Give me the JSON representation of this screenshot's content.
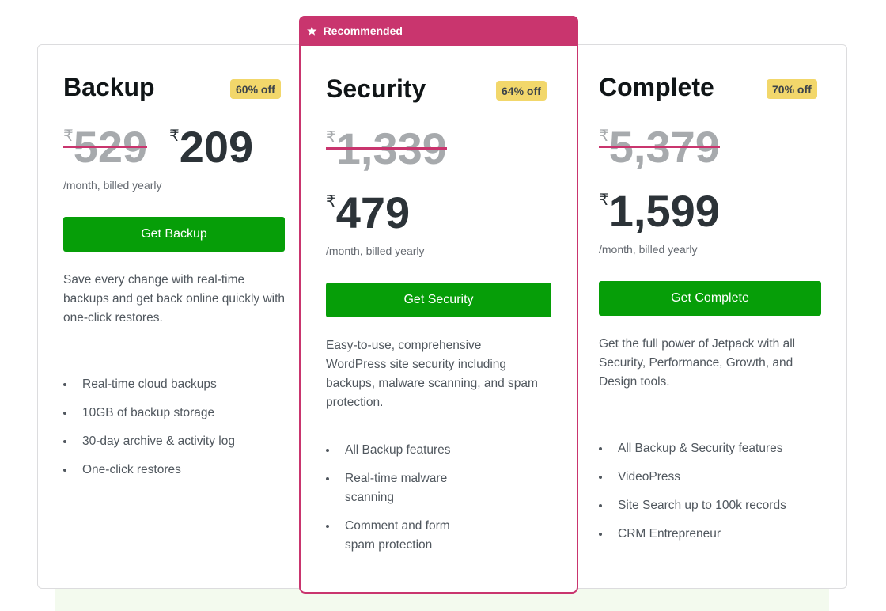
{
  "currency": "₹",
  "recommended_label": "Recommended",
  "plans": [
    {
      "name": "Backup",
      "discount": "60% off",
      "old_price": "529",
      "price": "209",
      "billing": "/month, billed yearly",
      "cta": "Get Backup",
      "description": "Save every change with real-time backups and get back online quickly with one-click restores.",
      "features": [
        "Real-time cloud backups",
        "10GB of backup storage",
        "30-day archive & activity log",
        "One-click restores"
      ]
    },
    {
      "name": "Security",
      "discount": "64% off",
      "old_price": "1,339",
      "price": "479",
      "billing": "/month, billed yearly",
      "cta": "Get Security",
      "description": "Easy-to-use, comprehensive WordPress site security including backups, malware scanning, and spam protection.",
      "features": [
        "All Backup features",
        "Real-time malware scanning",
        "Comment and form spam protection"
      ]
    },
    {
      "name": "Complete",
      "discount": "70% off",
      "old_price": "5,379",
      "price": "1,599",
      "billing": "/month, billed yearly",
      "cta": "Get Complete",
      "description": "Get the full power of Jetpack with all Security, Performance, Growth, and Design tools.",
      "features": [
        "All Backup & Security features",
        "VideoPress",
        "Site Search up to 100k records",
        "CRM Entrepreneur"
      ]
    }
  ],
  "colors": {
    "accent": "#c9356e",
    "cta": "#069e08",
    "badge": "#f2d76b"
  }
}
